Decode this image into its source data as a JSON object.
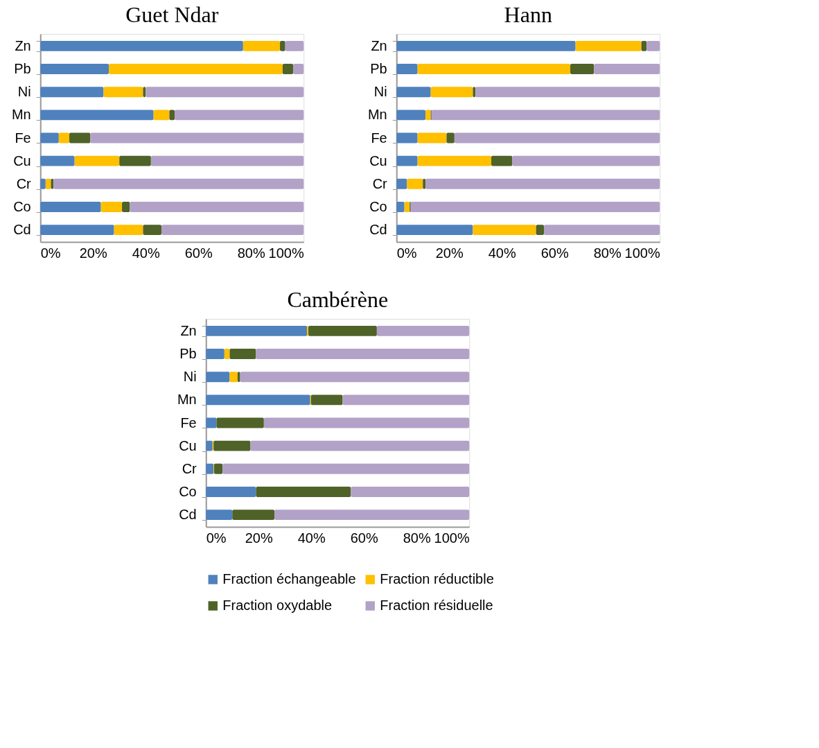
{
  "chart_data": [
    {
      "type": "bar",
      "orientation": "horizontal",
      "stacked": true,
      "title": "Guet Ndar",
      "categories": [
        "Zn",
        "Pb",
        "Ni",
        "Mn",
        "Fe",
        "Cu",
        "Cr",
        "Co",
        "Cd"
      ],
      "xlim": [
        0,
        100
      ],
      "xticks": [
        {
          "value": 0,
          "label": "0%"
        },
        {
          "value": 20,
          "label": "20%"
        },
        {
          "value": 40,
          "label": "40%"
        },
        {
          "value": 60,
          "label": "60%"
        },
        {
          "value": 80,
          "label": "80%"
        },
        {
          "value": 100,
          "label": "100%"
        }
      ],
      "series": [
        {
          "color": "#4f81bd",
          "values": [
            77,
            26,
            24,
            43,
            7,
            13,
            2,
            23,
            28
          ]
        },
        {
          "color": "#ffc000",
          "values": [
            14,
            66,
            15,
            6,
            4,
            17,
            2,
            8,
            11
          ]
        },
        {
          "color": "#4f6228",
          "values": [
            2,
            4,
            1,
            2,
            8,
            12,
            1,
            3,
            7
          ]
        },
        {
          "color": "#b3a2c7",
          "values": [
            7,
            4,
            60,
            49,
            81,
            58,
            95,
            66,
            54
          ]
        }
      ]
    },
    {
      "type": "bar",
      "orientation": "horizontal",
      "stacked": true,
      "title": "Hann",
      "categories": [
        "Zn",
        "Pb",
        "Ni",
        "Mn",
        "Fe",
        "Cu",
        "Cr",
        "Co",
        "Cd"
      ],
      "xlim": [
        0,
        100
      ],
      "xticks": [
        {
          "value": 0,
          "label": "0%"
        },
        {
          "value": 20,
          "label": "20%"
        },
        {
          "value": 40,
          "label": "40%"
        },
        {
          "value": 60,
          "label": "60%"
        },
        {
          "value": 80,
          "label": "80%"
        },
        {
          "value": 100,
          "label": "100%"
        }
      ],
      "series": [
        {
          "color": "#4f81bd",
          "values": [
            68,
            8,
            13,
            11,
            8,
            8,
            4,
            3,
            29
          ]
        },
        {
          "color": "#ffc000",
          "values": [
            25,
            58,
            16,
            2,
            11,
            28,
            6,
            2,
            24
          ]
        },
        {
          "color": "#4f6228",
          "values": [
            2,
            9,
            1,
            0.3,
            3,
            8,
            1,
            0.4,
            3
          ]
        },
        {
          "color": "#b3a2c7",
          "values": [
            5,
            25,
            70,
            86.7,
            78,
            56,
            89,
            94.6,
            44
          ]
        }
      ]
    },
    {
      "type": "bar",
      "orientation": "horizontal",
      "stacked": true,
      "title": "Cambérène",
      "legend": "bottom",
      "categories": [
        "Zn",
        "Pb",
        "Ni",
        "Mn",
        "Fe",
        "Cu",
        "Cr",
        "Co",
        "Cd"
      ],
      "xlim": [
        0,
        100
      ],
      "xticks": [
        {
          "value": 0,
          "label": "0%"
        },
        {
          "value": 20,
          "label": "20%"
        },
        {
          "value": 40,
          "label": "40%"
        },
        {
          "value": 60,
          "label": "60%"
        },
        {
          "value": 80,
          "label": "80%"
        },
        {
          "value": 100,
          "label": "100%"
        }
      ],
      "series": [
        {
          "name": "Fraction échangeable",
          "color": "#4f81bd",
          "values": [
            38.4,
            7,
            9,
            39.6,
            4,
            2.5,
            2.9,
            19,
            10
          ]
        },
        {
          "name": "Fraction réductible",
          "color": "#ffc000",
          "values": [
            0.5,
            2,
            3,
            0.3,
            0,
            0.4,
            0.2,
            0,
            0
          ]
        },
        {
          "name": "Fraction oxydable",
          "color": "#4f6228",
          "values": [
            26,
            10,
            1,
            12,
            18,
            14,
            3.2,
            36,
            16
          ]
        },
        {
          "name": "Fraction résiduelle",
          "color": "#b3a2c7",
          "values": [
            35.1,
            81,
            87,
            48.1,
            78,
            83.1,
            93.7,
            45,
            74
          ]
        }
      ]
    }
  ]
}
